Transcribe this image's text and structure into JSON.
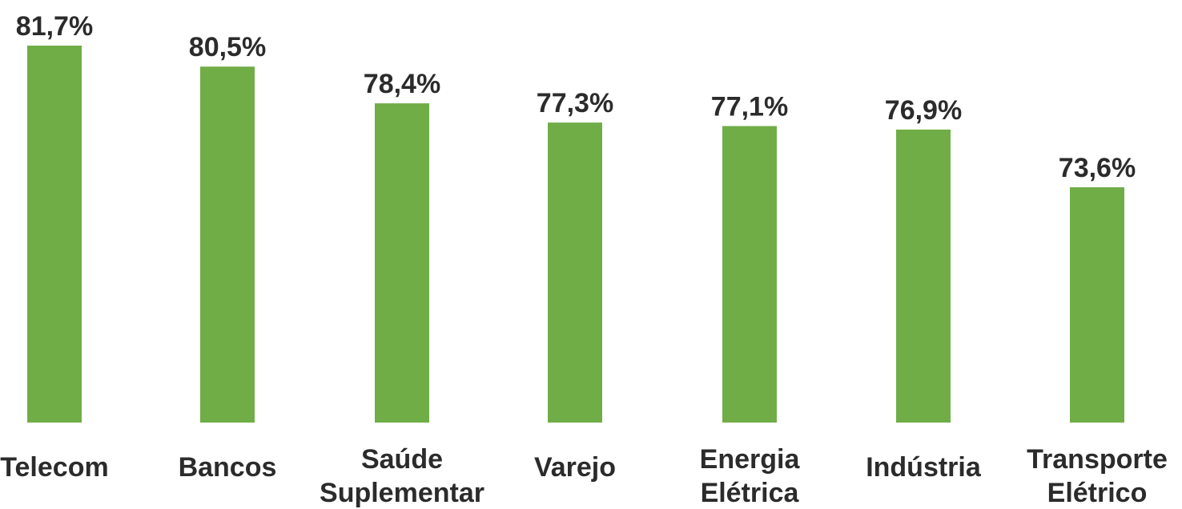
{
  "chart_data": {
    "type": "bar",
    "categories": [
      [
        "Telecom"
      ],
      [
        "Bancos"
      ],
      [
        "Saúde",
        "Suplementar"
      ],
      [
        "Varejo"
      ],
      [
        "Energia",
        "Elétrica"
      ],
      [
        "Indústria"
      ],
      [
        "Transporte",
        "Elétrico"
      ]
    ],
    "values": [
      81.7,
      80.5,
      78.4,
      77.3,
      77.1,
      76.9,
      73.6
    ],
    "value_labels": [
      "81,7%",
      "80,5%",
      "78,4%",
      "77,3%",
      "77,1%",
      "76,9%",
      "73,6%"
    ],
    "title": "",
    "xlabel": "",
    "ylabel": "",
    "bar_color": "#70ad47",
    "grid": false,
    "legend": "none"
  }
}
